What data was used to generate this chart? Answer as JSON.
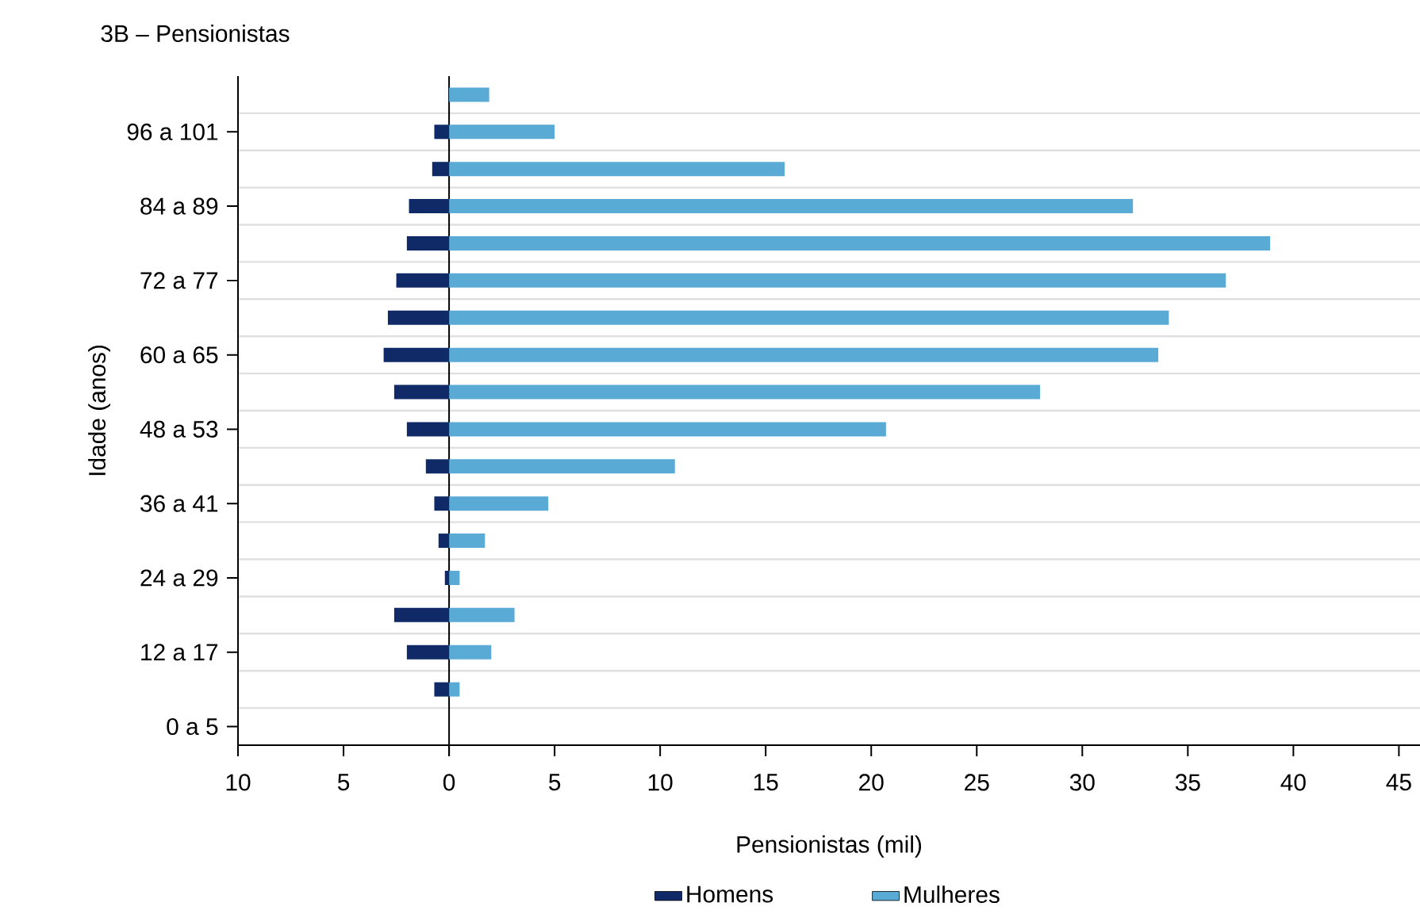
{
  "chart_data": {
    "type": "bar",
    "orientation": "horizontal",
    "title": "3B – Pensionistas",
    "xlabel": "Pensionistas (mil)",
    "ylabel": "Idade (anos)",
    "categories": [
      null,
      "96 a 101",
      null,
      "84 a 89",
      null,
      "72 a 77",
      null,
      "60 a 65",
      null,
      "48 a 53",
      null,
      "36 a 41",
      null,
      "24 a 29",
      null,
      "12 a 17",
      null,
      "0 a 5"
    ],
    "series": [
      {
        "name": "Homens",
        "color": "#0f2a66",
        "values": [
          null,
          -0.7,
          -0.8,
          -1.9,
          -2.0,
          -2.5,
          -2.9,
          -3.1,
          -2.6,
          -2.0,
          -1.1,
          -0.7,
          -0.5,
          -0.2,
          -2.6,
          -2.0,
          -0.7,
          null
        ]
      },
      {
        "name": "Mulheres",
        "color": "#5aaad6",
        "values": [
          1.9,
          5.0,
          15.9,
          32.4,
          38.9,
          36.8,
          34.1,
          33.6,
          28.0,
          20.7,
          10.7,
          4.7,
          1.7,
          0.5,
          3.1,
          2.0,
          0.5,
          null
        ]
      }
    ],
    "xlim": [
      -10,
      46
    ],
    "xticks": [
      {
        "value": -10,
        "label": "10"
      },
      {
        "value": -5,
        "label": "5"
      },
      0,
      5,
      10,
      15,
      20,
      25,
      30,
      35,
      40,
      45
    ],
    "stacked": true,
    "grid": "y",
    "legend": "bottom"
  }
}
